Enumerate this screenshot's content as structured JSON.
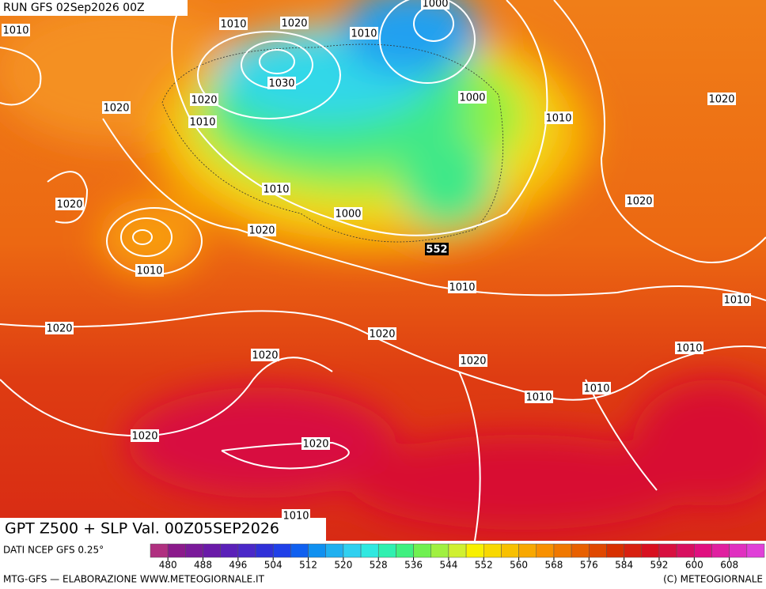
{
  "run_label": "RUN GFS 02Sep2026 00Z",
  "title": "GPT Z500 + SLP Val. 00Z05SEP2026",
  "source": "DATI NCEP GFS 0.25°",
  "credit_left": "MTG-GFS — ELABORAZIONE WWW.METEOGIORNALE.IT",
  "credit_right": "(C) METEOGIORNALE",
  "isobar_labels": [
    "1010",
    "1010",
    "1020",
    "1000",
    "1010",
    "1020",
    "1020",
    "1030",
    "1010",
    "1000",
    "1010",
    "1020",
    "1020",
    "1010",
    "1000",
    "1020",
    "1020",
    "1010",
    "1010",
    "1010",
    "1020",
    "1020",
    "1010",
    "1020",
    "1020",
    "1010",
    "1010",
    "1020",
    "1020",
    "1010"
  ],
  "geopotential_label": "552",
  "colorbar": {
    "colors": [
      "#b03080",
      "#8b1a8b",
      "#7a1a9a",
      "#6a1aa8",
      "#5a20b8",
      "#4a28c8",
      "#3030d8",
      "#2040e8",
      "#1060f0",
      "#1090f0",
      "#20b0f0",
      "#30d0f0",
      "#30e8e0",
      "#30f0b0",
      "#40f080",
      "#70f050",
      "#a0f040",
      "#d0f030",
      "#f8f000",
      "#f8d800",
      "#f8c000",
      "#f8a800",
      "#f89000",
      "#f07800",
      "#e86000",
      "#e04800",
      "#d83000",
      "#d82010",
      "#d81020",
      "#d81040",
      "#d81060",
      "#e01080",
      "#e020a0",
      "#e030c0",
      "#e040d8"
    ],
    "ticks": [
      480,
      488,
      496,
      504,
      512,
      520,
      528,
      536,
      544,
      552,
      560,
      568,
      576,
      584,
      592,
      600,
      608
    ]
  }
}
